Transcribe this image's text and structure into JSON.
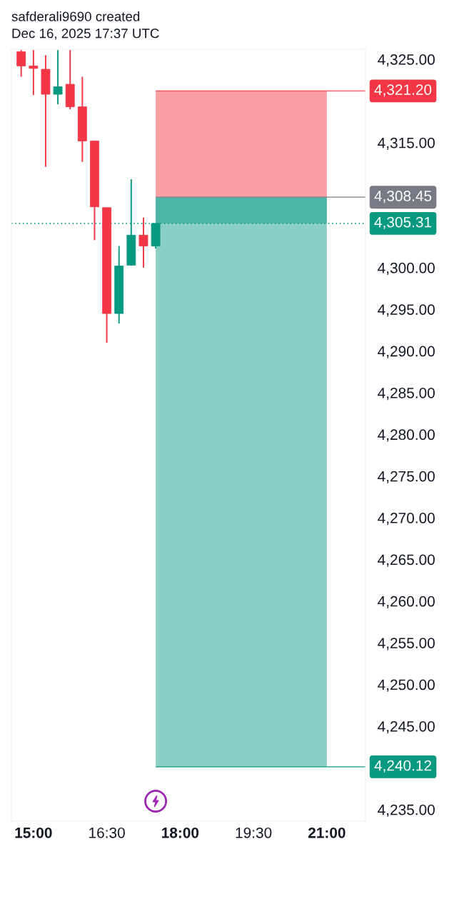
{
  "chart_data": {
    "type": "candlestick",
    "title": "safderali9690 created\nDec 16, 2025 17:37 UTC",
    "x": [
      14.75,
      15.0,
      15.25,
      15.5,
      15.75,
      16.0,
      16.25,
      16.5,
      16.75,
      17.0,
      17.25,
      17.5
    ],
    "ohlc": [
      [
        4325.9,
        4326.1,
        4322.9,
        4324.2
      ],
      [
        4324.2,
        4326.1,
        4320.7,
        4323.9
      ],
      [
        4323.8,
        4325.5,
        4312.1,
        4320.8
      ],
      [
        4320.8,
        4326.1,
        4319.6,
        4321.7
      ],
      [
        4322.0,
        4326.1,
        4319.0,
        4319.3
      ],
      [
        4319.3,
        4322.9,
        4312.7,
        4315.2
      ],
      [
        4315.2,
        4315.2,
        4303.3,
        4307.3
      ],
      [
        4307.2,
        4307.2,
        4291.0,
        4294.5
      ],
      [
        4294.5,
        4302.6,
        4293.3,
        4300.2
      ],
      [
        4300.3,
        4310.6,
        4300.3,
        4303.9
      ],
      [
        4303.9,
        4306.0,
        4300.0,
        4302.6
      ],
      [
        4302.6,
        4305.31,
        4302.3,
        4305.31
      ]
    ],
    "colors": [
      "#f23645",
      "#f23645",
      "#f23645",
      "#089981",
      "#f23645",
      "#f23645",
      "#f23645",
      "#f23645",
      "#089981",
      "#089981",
      "#f23645",
      "#089981"
    ],
    "xlim": [
      14.55,
      21.79
    ],
    "xticks": [
      {
        "value": 15,
        "label": "15:00"
      },
      {
        "value": 16.5,
        "label": "16:30"
      },
      {
        "value": 18,
        "label": "18:00"
      },
      {
        "value": 19.5,
        "label": "19:30"
      },
      {
        "value": 21,
        "label": "21:00"
      }
    ],
    "ylim": [
      4233.6,
      4326.2
    ],
    "yticks": [
      {
        "value": 4235,
        "label": "4,235.00"
      },
      {
        "value": 4245,
        "label": "4,245.00"
      },
      {
        "value": 4250,
        "label": "4,250.00"
      },
      {
        "value": 4255,
        "label": "4,255.00"
      },
      {
        "value": 4260,
        "label": "4,260.00"
      },
      {
        "value": 4265,
        "label": "4,265.00"
      },
      {
        "value": 4270,
        "label": "4,270.00"
      },
      {
        "value": 4275,
        "label": "4,275.00"
      },
      {
        "value": 4280,
        "label": "4,280.00"
      },
      {
        "value": 4285,
        "label": "4,285.00"
      },
      {
        "value": 4290,
        "label": "4,290.00"
      },
      {
        "value": 4295,
        "label": "4,295.00"
      },
      {
        "value": 4300,
        "label": "4,300.00"
      },
      {
        "value": 4315,
        "label": "4,315.00"
      },
      {
        "value": 4325,
        "label": "4,325.00"
      }
    ],
    "bands": [
      {
        "axis": "y",
        "from": 4308.45,
        "to": 4321.2,
        "color": "#f23645"
      },
      {
        "axis": "y",
        "from": 4240.12,
        "to": 4308.45,
        "color": "#089981"
      },
      {
        "axis": "y",
        "from": 4305.31,
        "to": 4308.45,
        "color": "#089981"
      }
    ],
    "ref_lines": [
      {
        "axis": "y",
        "value": 4321.2,
        "label": "4,321.20",
        "color": "#f23645",
        "line_style": "solid"
      },
      {
        "axis": "y",
        "value": 4308.45,
        "label": "4,308.45",
        "color": "#787b86",
        "line_style": "solid"
      },
      {
        "axis": "y",
        "value": 4305.31,
        "label": "4,305.31",
        "color": "#089981",
        "line_style": "dotted"
      },
      {
        "axis": "y",
        "value": 4240.12,
        "label": "4,240.12",
        "color": "#089981",
        "line_style": "solid"
      }
    ]
  }
}
